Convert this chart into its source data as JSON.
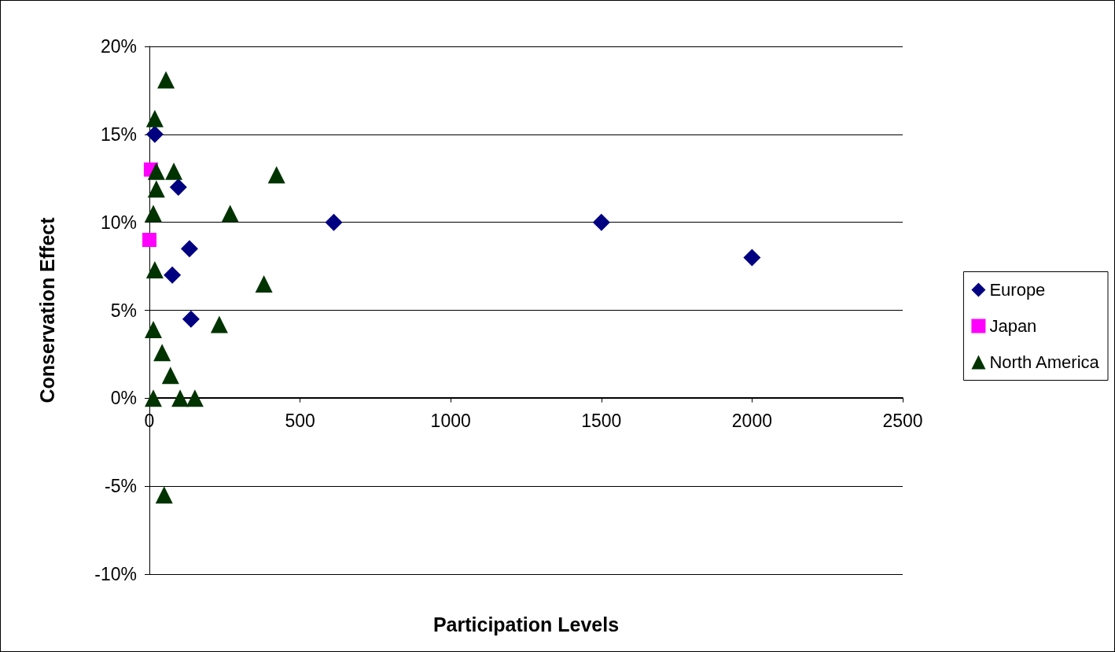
{
  "chart_data": {
    "type": "scatter",
    "xlabel": "Participation Levels",
    "ylabel": "Conservation Effect",
    "xlim": [
      0,
      2500
    ],
    "xticks": [
      0,
      500,
      1000,
      1500,
      2000,
      2500
    ],
    "ylim": [
      -10,
      20
    ],
    "yticks": [
      {
        "value": -10,
        "label": "-10%"
      },
      {
        "value": -5,
        "label": "-5%"
      },
      {
        "value": 0,
        "label": "0%"
      },
      {
        "value": 5,
        "label": "5%"
      },
      {
        "value": 10,
        "label": "10%"
      },
      {
        "value": 15,
        "label": "15%"
      },
      {
        "value": 20,
        "label": "20%"
      }
    ],
    "grid": "y",
    "legend": "right",
    "series": [
      {
        "name": "Europe",
        "color": "#000080",
        "marker": "diamond",
        "x": [
          18,
          96,
          76,
          133,
          138,
          612,
          1500,
          2000
        ],
        "values": [
          15,
          12,
          7,
          8.5,
          4.5,
          10,
          10,
          8
        ]
      },
      {
        "name": "Japan",
        "color": "#ff00ff",
        "marker": "square",
        "x": [
          5,
          0
        ],
        "values": [
          13,
          9
        ]
      },
      {
        "name": "North America",
        "color": "#003300",
        "marker": "triangle",
        "x": [
          55,
          18,
          23,
          81,
          23,
          13,
          268,
          422,
          18,
          380,
          232,
          13,
          42,
          70,
          13,
          102,
          151,
          49
        ],
        "values": [
          18.1,
          15.9,
          12.9,
          12.9,
          11.9,
          10.5,
          10.5,
          12.7,
          7.3,
          6.5,
          4.2,
          3.9,
          2.6,
          1.3,
          0,
          0,
          0,
          -5.5
        ]
      }
    ]
  }
}
